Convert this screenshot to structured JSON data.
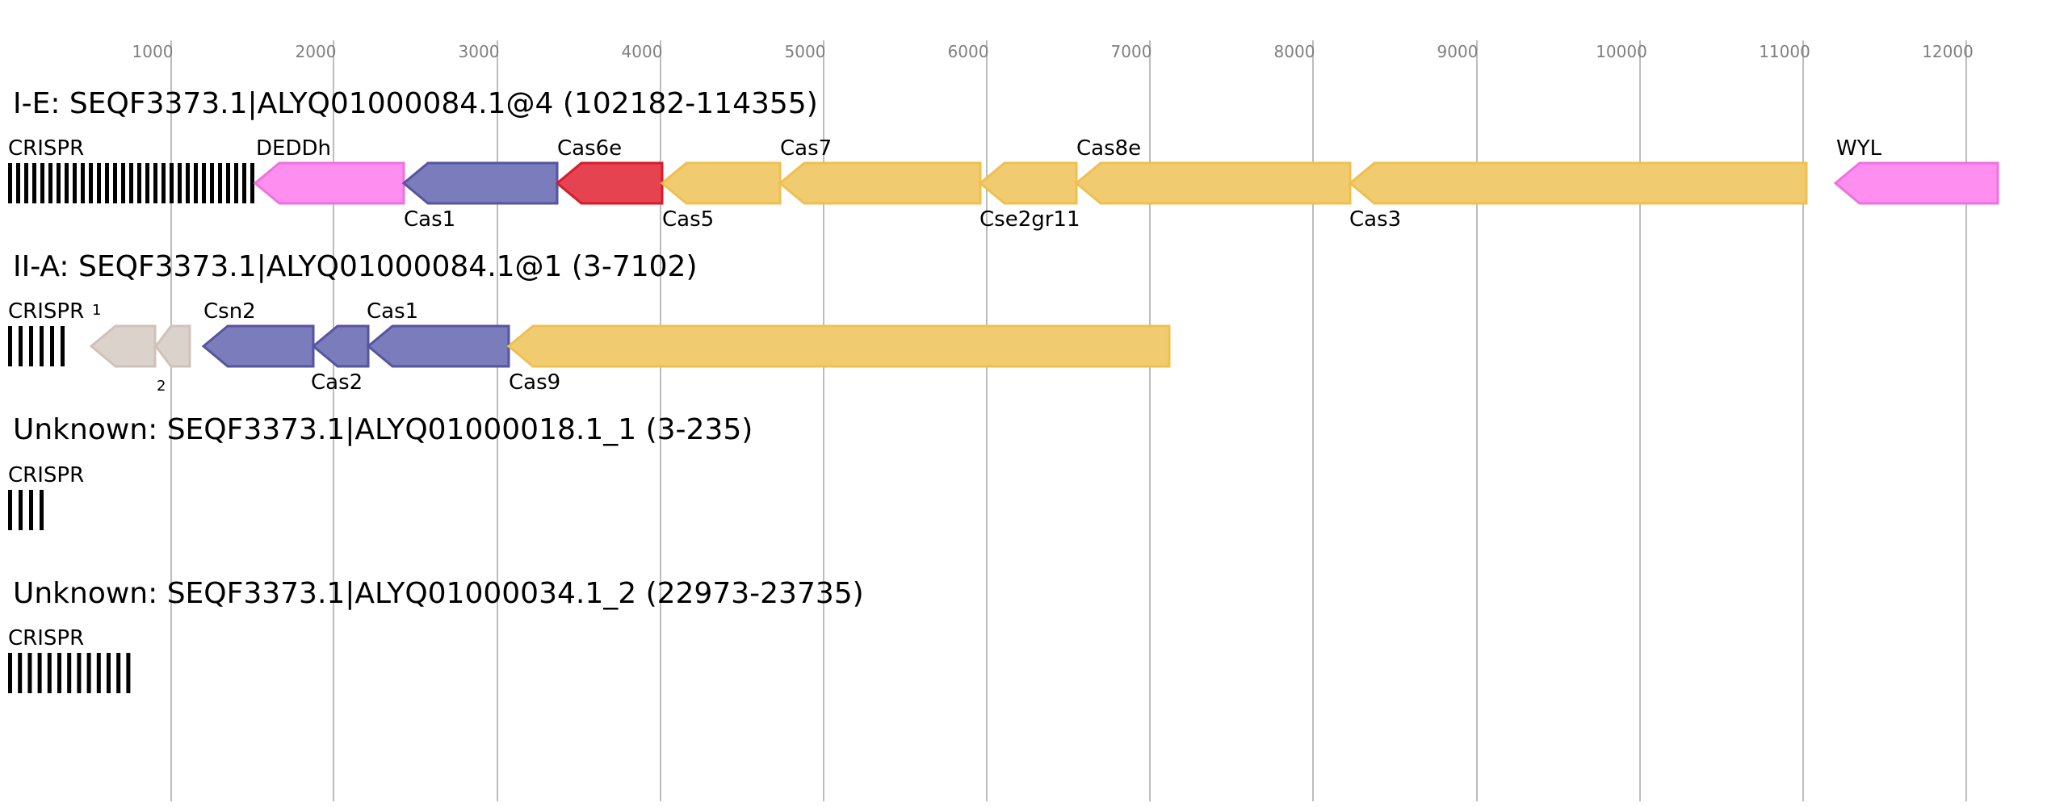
{
  "axis": {
    "ticks": [
      "1000",
      "2000",
      "3000",
      "4000",
      "5000",
      "6000",
      "7000",
      "8000",
      "9000",
      "10000",
      "11000",
      "12000"
    ],
    "grid_color": "#bdbdbd",
    "tick_label_color": "#808080"
  },
  "colors": {
    "pink": "#fe8ff1",
    "pink_stroke": "#f070e0",
    "blue": "#7b7cbb",
    "blue_stroke": "#5555a0",
    "red": "#e64351",
    "red_stroke": "#d91a2a",
    "yellow": "#f1cb70",
    "yellow_stroke": "#efc04f",
    "gray": "#dcd2cc",
    "gray_stroke": "#cfc2ba",
    "crispr": "#000000"
  },
  "tracks": [
    {
      "title": "I-E: SEQF3373.1|ALYQ01000084.1@4 (102182-114355)",
      "crispr_label": "CRISPR",
      "genes": [
        {
          "label": "DEDDh",
          "color": "pink",
          "strand": "-",
          "label_pos": "above"
        },
        {
          "label": "Cas1",
          "color": "blue",
          "strand": "-",
          "label_pos": "below"
        },
        {
          "label": "Cas6e",
          "color": "red",
          "strand": "-",
          "label_pos": "above"
        },
        {
          "label": "Cas5",
          "color": "yellow",
          "strand": "-",
          "label_pos": "below"
        },
        {
          "label": "Cas7",
          "color": "yellow",
          "strand": "-",
          "label_pos": "above"
        },
        {
          "label": "Cse2gr11",
          "color": "yellow",
          "strand": "-",
          "label_pos": "below"
        },
        {
          "label": "Cas8e",
          "color": "yellow",
          "strand": "-",
          "label_pos": "above"
        },
        {
          "label": "Cas3",
          "color": "yellow",
          "strand": "-",
          "label_pos": "below"
        },
        {
          "label": "WYL",
          "color": "pink",
          "strand": "-",
          "label_pos": "above"
        }
      ]
    },
    {
      "title": "II-A: SEQF3373.1|ALYQ01000084.1@1 (3-7102)",
      "crispr_label": "CRISPR",
      "genes": [
        {
          "label": "1",
          "color": "gray",
          "strand": "-",
          "label_pos": "above"
        },
        {
          "label": "2",
          "color": "gray",
          "strand": "-",
          "label_pos": "below"
        },
        {
          "label": "Csn2",
          "color": "blue",
          "strand": "-",
          "label_pos": "above"
        },
        {
          "label": "Cas2",
          "color": "blue",
          "strand": "-",
          "label_pos": "below"
        },
        {
          "label": "Cas1",
          "color": "blue",
          "strand": "-",
          "label_pos": "above"
        },
        {
          "label": "Cas9",
          "color": "yellow",
          "strand": "-",
          "label_pos": "below"
        }
      ]
    },
    {
      "title": "Unknown: SEQF3373.1|ALYQ01000018.1_1 (3-235)",
      "crispr_label": "CRISPR",
      "genes": []
    },
    {
      "title": "Unknown: SEQF3373.1|ALYQ01000034.1_2 (22973-23735)",
      "crispr_label": "CRISPR",
      "genes": []
    }
  ]
}
